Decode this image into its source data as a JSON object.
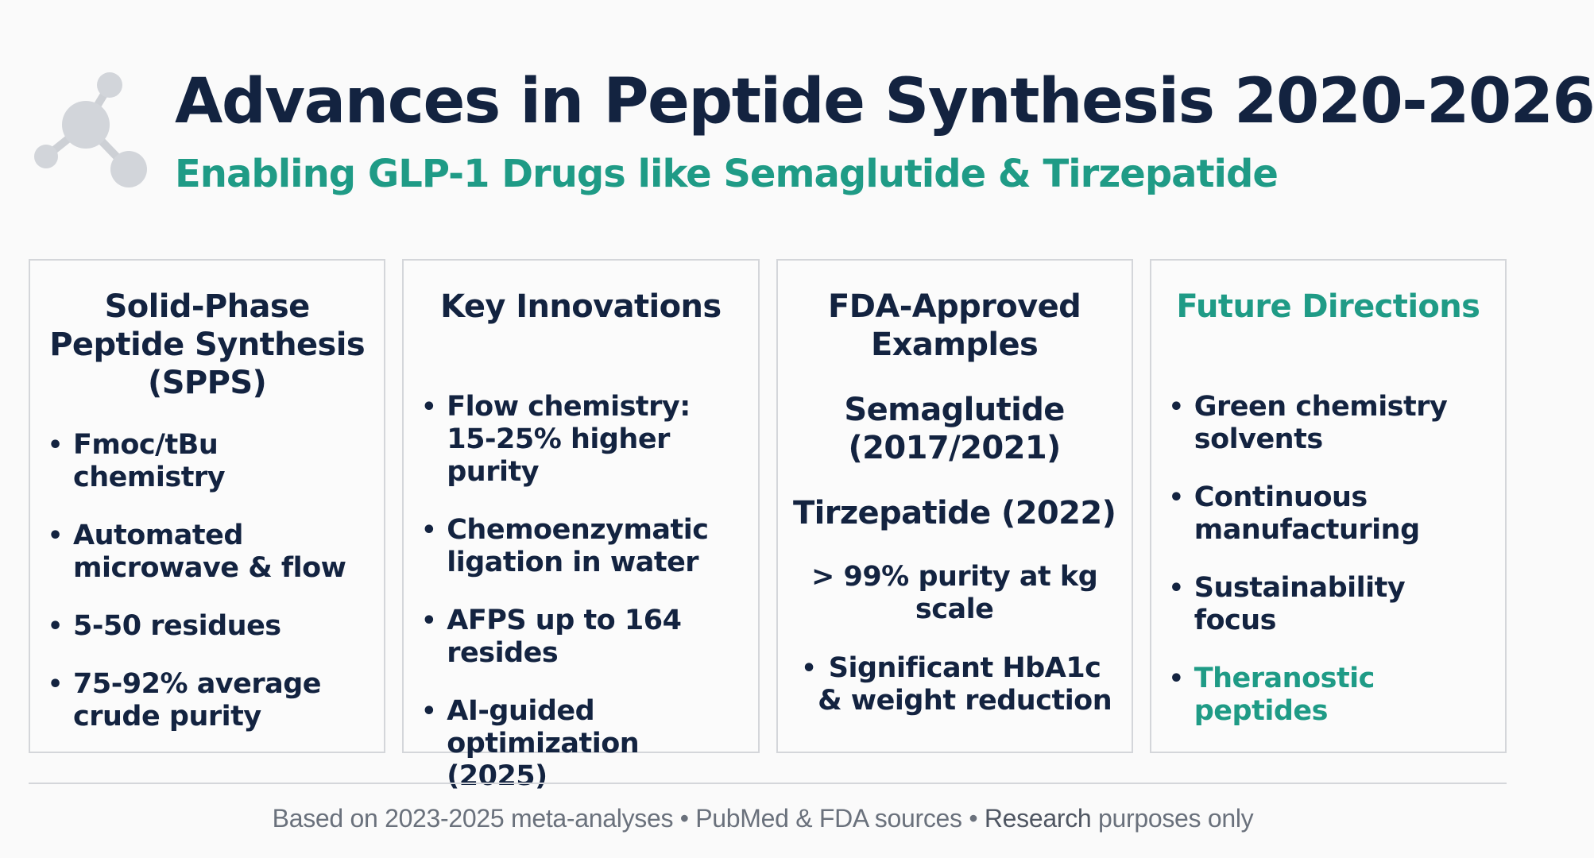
{
  "header": {
    "title": "Advances in Peptide Synthesis 2020-2026",
    "subtitle": "Enabling GLP-1 Drugs like Semaglutide & Tirzepatide",
    "logo_icon": "molecule-icon"
  },
  "cards": [
    {
      "title": "Solid-Phase Peptide Synthesis (SPPS)",
      "bullets": [
        "Fmoc/tBu chemistry",
        "Automated microwave & flow",
        "5-50 residues",
        "75-92% average crude purity"
      ]
    },
    {
      "title": "Key Innovations",
      "bullets": [
        "Flow chemistry: 15-25% higher purity",
        "Chemoenzymatic ligation in water",
        "AFPS up to 164 resides",
        "AI-guided optimization (2025)"
      ]
    },
    {
      "title": "FDA-Approved Examples",
      "semaglutide": "Semaglutide (2017/2021)",
      "tirzepatide": "Tirzepatide (2022)",
      "purity": "> 99% purity at kg scale",
      "bullet": "Significant HbA1c & weight reduction"
    },
    {
      "title": "Future Directions",
      "bullets": [
        "Green chemistry solvents",
        "Continuous manufacturing",
        "Sustainability focus",
        "Theranostic peptides"
      ]
    }
  ],
  "footer": {
    "text": "Based on 2023-2025 meta-analyses • PubMed & FDA sources • ",
    "strong": "Research",
    "tail": " purposes only"
  },
  "colors": {
    "navy": "#132340",
    "teal": "#1f9b86",
    "border": "#d4d6da",
    "footer_gray": "#6a717c"
  }
}
